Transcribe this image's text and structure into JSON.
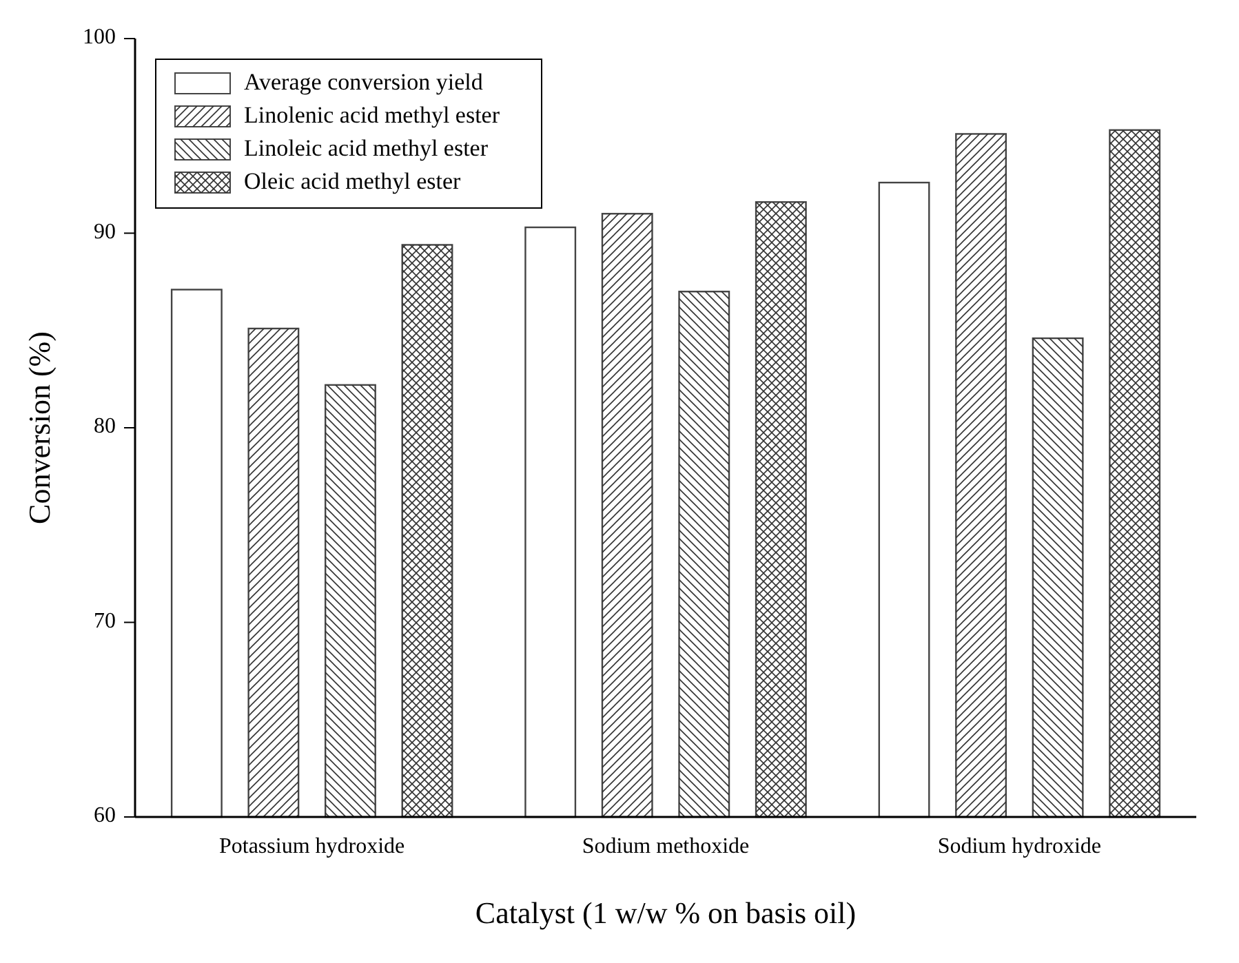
{
  "chart_data": {
    "type": "bar",
    "xlabel": "Catalyst (1 w/w % on basis oil)",
    "ylabel": "Conversion (%)",
    "categories": [
      "Potassium hydroxide",
      "Sodium methoxide",
      "Sodium hydroxide"
    ],
    "series": [
      {
        "name": "Average conversion yield",
        "color": "#ffffff",
        "values": [
          87.1,
          90.3,
          92.6
        ]
      },
      {
        "name": "Linolenic acid methyl ester",
        "color": "#ffffff",
        "values": [
          85.1,
          91.0,
          95.1
        ]
      },
      {
        "name": "Linoleic acid methyl ester",
        "color": "#ffffff",
        "values": [
          82.2,
          87.0,
          84.6
        ]
      },
      {
        "name": "Oleic acid methyl ester",
        "color": "#ffffff",
        "values": [
          89.4,
          91.6,
          95.3
        ]
      }
    ],
    "ylim": [
      60,
      100
    ],
    "yticks": [
      60,
      70,
      80,
      90,
      100
    ],
    "grid": false,
    "legend": "top left"
  }
}
